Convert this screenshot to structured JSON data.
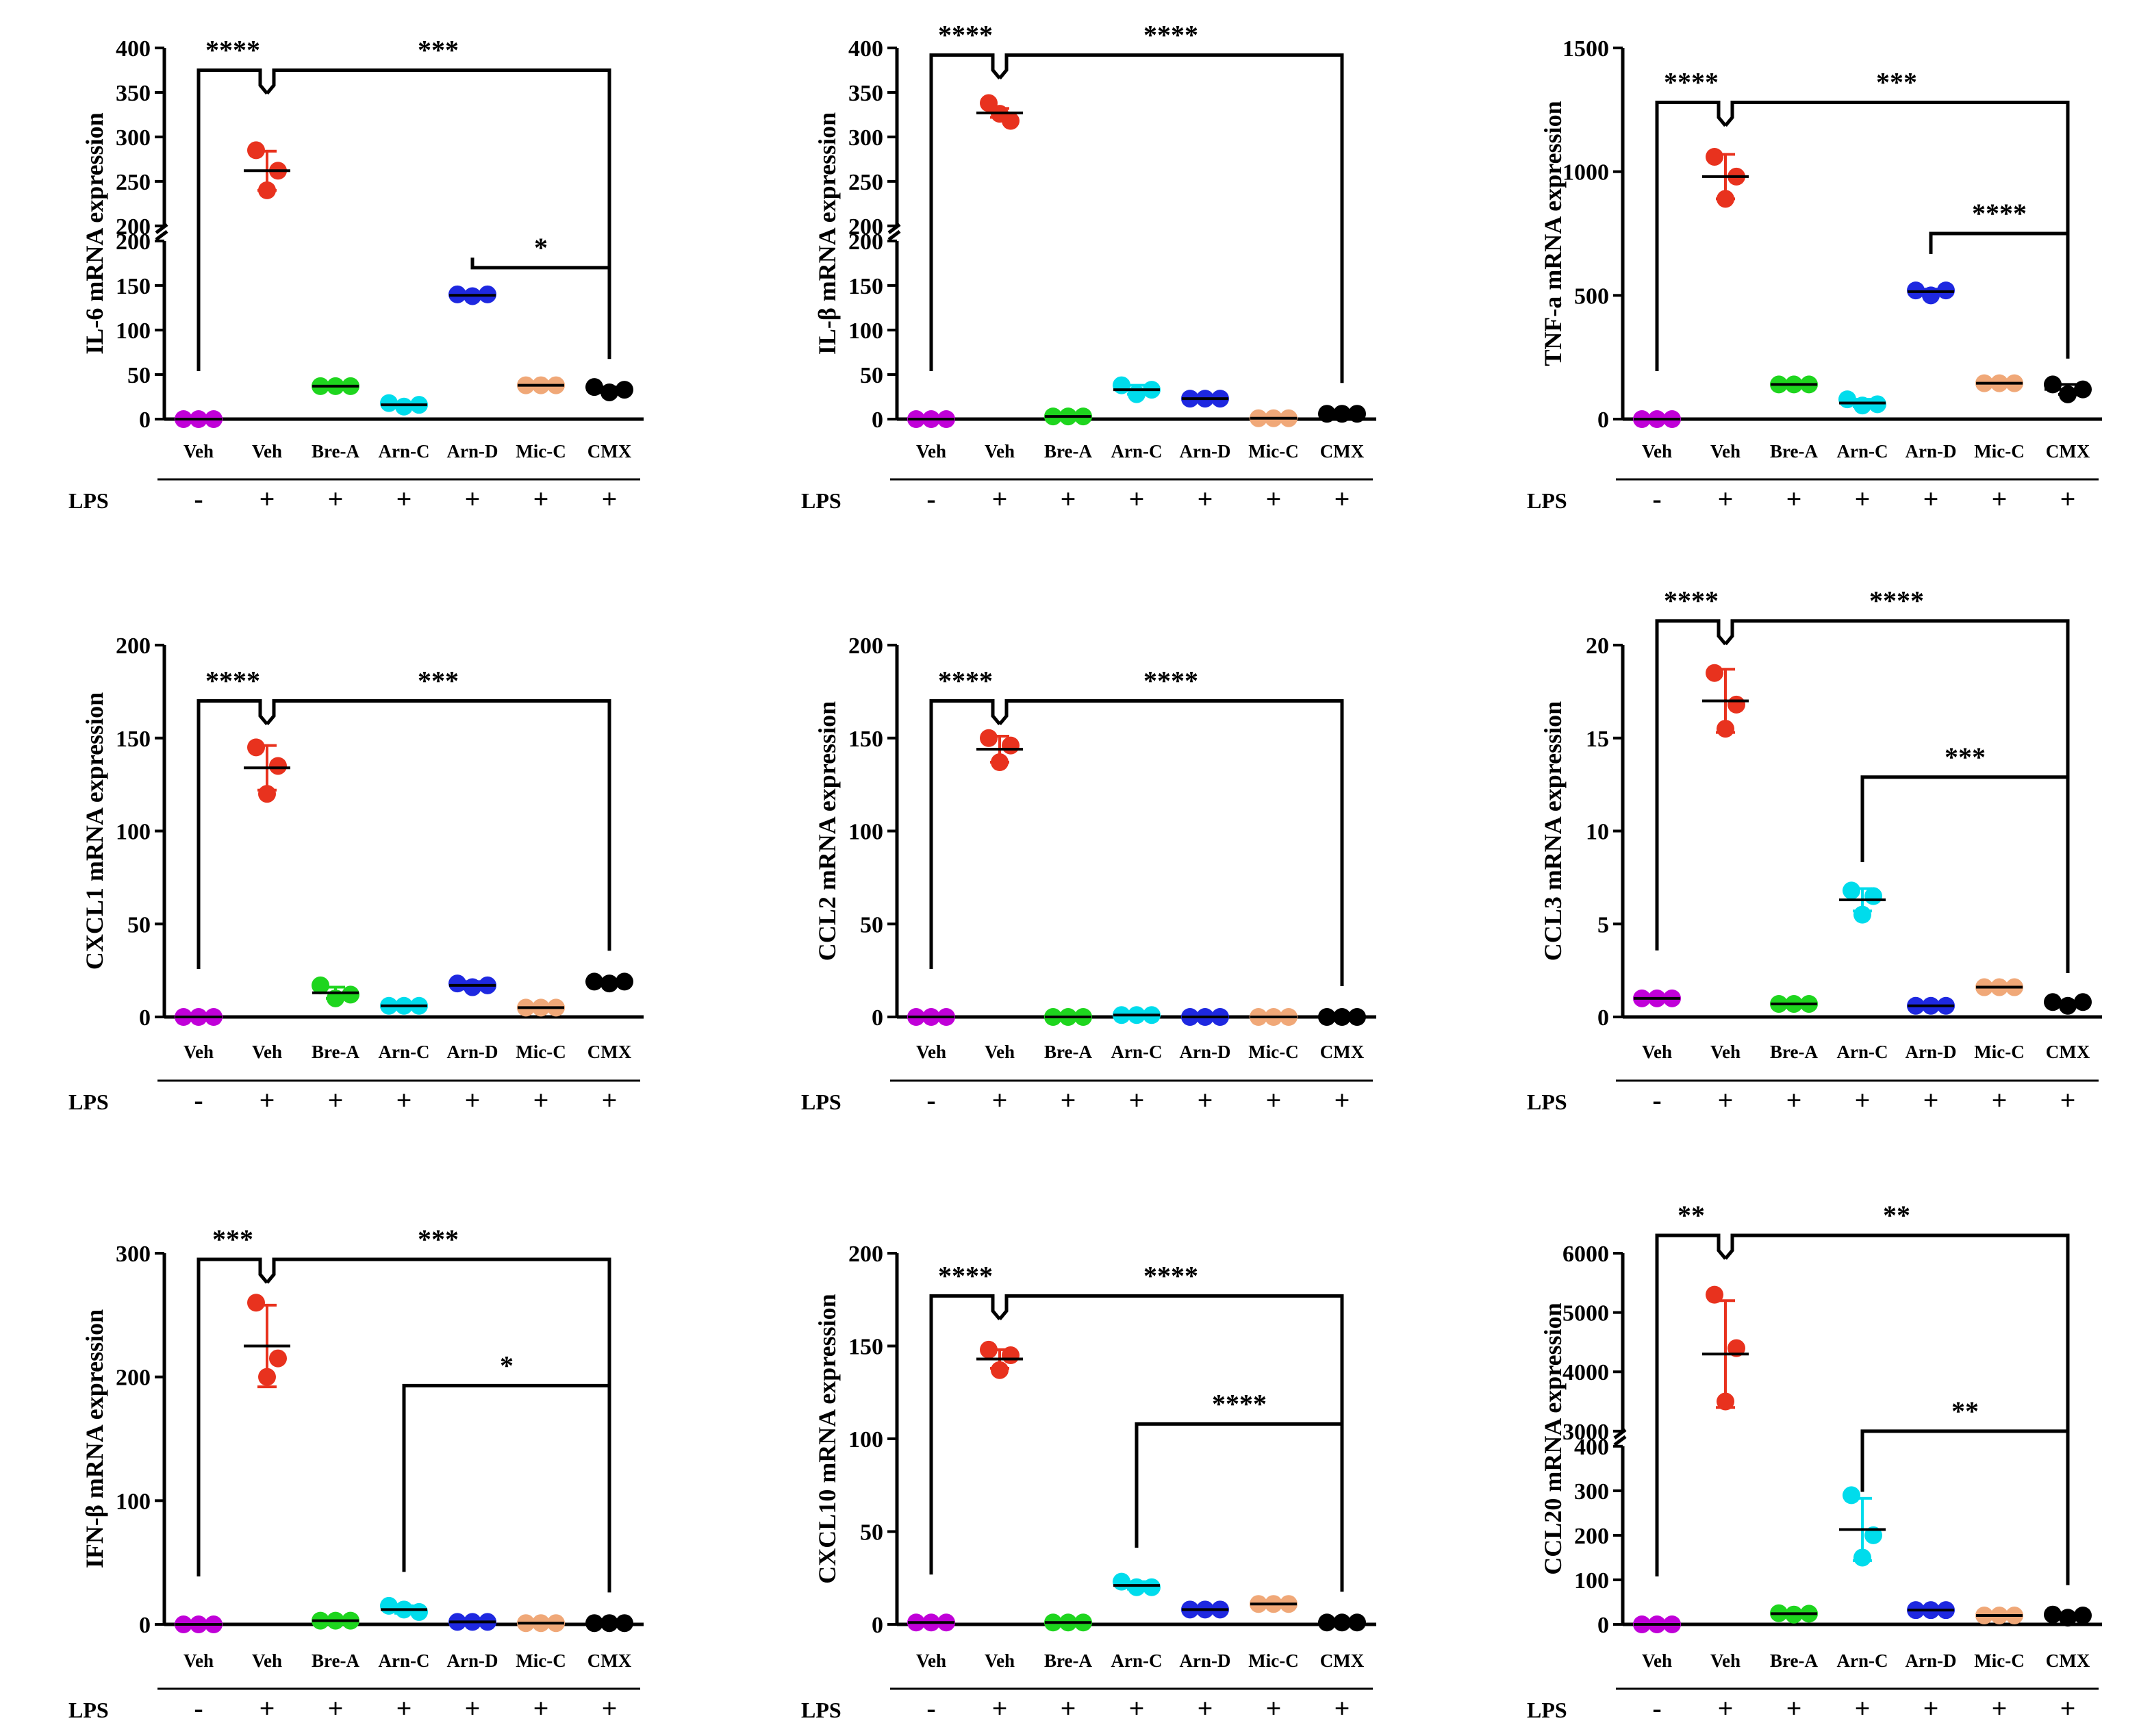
{
  "chart_data": [
    {
      "type": "scatter",
      "ylabel": "IL-6 mRNA expression",
      "categories": [
        "Veh",
        "Veh",
        "Bre-A",
        "Arn-C",
        "Arn-D",
        "Mic-C",
        "CMX"
      ],
      "treatment_label": "LPS",
      "treatment": [
        "-",
        "+",
        "+",
        "+",
        "+",
        "+",
        "+"
      ],
      "y_axis": {
        "type": "broken",
        "lower": [
          0,
          200
        ],
        "upper": [
          200,
          400
        ],
        "lower_ticks": [
          0,
          50,
          100,
          150,
          200
        ],
        "upper_ticks": [
          200,
          250,
          300,
          350,
          400
        ]
      },
      "points": [
        [
          0,
          0,
          0
        ],
        [
          285,
          262,
          240
        ],
        [
          37,
          37,
          37
        ],
        [
          18,
          14,
          16
        ],
        [
          140,
          138,
          140
        ],
        [
          38,
          38,
          38
        ],
        [
          36,
          30,
          33
        ]
      ],
      "means": [
        0,
        262,
        37,
        16,
        139,
        38,
        33
      ],
      "sds": [
        0,
        22,
        2,
        3,
        2,
        2,
        3
      ],
      "comparisons": [
        {
          "type": "tree",
          "label": "****",
          "from": 0,
          "to": 1,
          "level": 375
        },
        {
          "type": "tree",
          "label": "***",
          "from": 1,
          "to": 6,
          "level": 375
        },
        {
          "type": "bracket",
          "label": "*",
          "from": 4,
          "to": 6,
          "level": 170
        }
      ]
    },
    {
      "type": "scatter",
      "ylabel": "IL-β mRNA expression",
      "categories": [
        "Veh",
        "Veh",
        "Bre-A",
        "Arn-C",
        "Arn-D",
        "Mic-C",
        "CMX"
      ],
      "treatment_label": "LPS",
      "treatment": [
        "-",
        "+",
        "+",
        "+",
        "+",
        "+",
        "+"
      ],
      "y_axis": {
        "type": "broken",
        "lower": [
          0,
          200
        ],
        "upper": [
          200,
          400
        ],
        "lower_ticks": [
          0,
          50,
          100,
          150,
          200
        ],
        "upper_ticks": [
          200,
          250,
          300,
          350,
          400
        ]
      },
      "points": [
        [
          0,
          0,
          0
        ],
        [
          338,
          318,
          326
        ],
        [
          3,
          3,
          3
        ],
        [
          38,
          28,
          33
        ],
        [
          23,
          23,
          23
        ],
        [
          1,
          1,
          1
        ],
        [
          6,
          6,
          6
        ]
      ],
      "means": [
        0,
        327,
        3,
        33,
        23,
        1,
        6
      ],
      "sds": [
        0,
        5,
        1,
        5,
        1,
        1,
        1
      ],
      "comparisons": [
        {
          "type": "tree",
          "label": "****",
          "from": 0,
          "to": 1,
          "level": 392
        },
        {
          "type": "tree",
          "label": "****",
          "from": 1,
          "to": 6,
          "level": 392
        }
      ]
    },
    {
      "type": "scatter",
      "ylabel": "TNF-a mRNA expression",
      "categories": [
        "Veh",
        "Veh",
        "Bre-A",
        "Arn-C",
        "Arn-D",
        "Mic-C",
        "CMX"
      ],
      "treatment_label": "LPS",
      "treatment": [
        "-",
        "+",
        "+",
        "+",
        "+",
        "+",
        "+"
      ],
      "y_axis": {
        "type": "linear",
        "range": [
          0,
          1500
        ],
        "ticks": [
          0,
          500,
          1000,
          1500
        ]
      },
      "points": [
        [
          0,
          0,
          0
        ],
        [
          1060,
          980,
          890
        ],
        [
          140,
          140,
          140
        ],
        [
          80,
          55,
          60
        ],
        [
          520,
          500,
          520
        ],
        [
          145,
          145,
          145
        ],
        [
          140,
          100,
          120
        ]
      ],
      "means": [
        0,
        980,
        140,
        65,
        515,
        145,
        120
      ],
      "sds": [
        0,
        90,
        5,
        15,
        10,
        10,
        20
      ],
      "comparisons": [
        {
          "type": "tree",
          "label": "****",
          "from": 0,
          "to": 1,
          "level": 1280
        },
        {
          "type": "tree",
          "label": "***",
          "from": 1,
          "to": 6,
          "level": 1280
        },
        {
          "type": "bracket",
          "label": "****",
          "from": 4,
          "to": 6,
          "level": 750
        }
      ]
    },
    {
      "type": "scatter",
      "ylabel": "CXCL1 mRNA expression",
      "categories": [
        "Veh",
        "Veh",
        "Bre-A",
        "Arn-C",
        "Arn-D",
        "Mic-C",
        "CMX"
      ],
      "treatment_label": "LPS",
      "treatment": [
        "-",
        "+",
        "+",
        "+",
        "+",
        "+",
        "+"
      ],
      "y_axis": {
        "type": "linear",
        "range": [
          0,
          200
        ],
        "ticks": [
          0,
          50,
          100,
          150,
          200
        ]
      },
      "points": [
        [
          0,
          0,
          0
        ],
        [
          145,
          135,
          120
        ],
        [
          17,
          10,
          12
        ],
        [
          6,
          6,
          6
        ],
        [
          18,
          16,
          17
        ],
        [
          5,
          5,
          5
        ],
        [
          19,
          18,
          19
        ]
      ],
      "means": [
        0,
        134,
        13,
        6,
        17,
        5,
        19
      ],
      "sds": [
        0,
        12,
        3,
        1,
        2,
        1,
        1
      ],
      "comparisons": [
        {
          "type": "tree",
          "label": "****",
          "from": 0,
          "to": 1,
          "level": 170
        },
        {
          "type": "tree",
          "label": "***",
          "from": 1,
          "to": 6,
          "level": 170
        }
      ]
    },
    {
      "type": "scatter",
      "ylabel": "CCL2 mRNA expression",
      "categories": [
        "Veh",
        "Veh",
        "Bre-A",
        "Arn-C",
        "Arn-D",
        "Mic-C",
        "CMX"
      ],
      "treatment_label": "LPS",
      "treatment": [
        "-",
        "+",
        "+",
        "+",
        "+",
        "+",
        "+"
      ],
      "y_axis": {
        "type": "linear",
        "range": [
          0,
          200
        ],
        "ticks": [
          0,
          50,
          100,
          150,
          200
        ]
      },
      "points": [
        [
          0,
          0,
          0
        ],
        [
          150,
          146,
          137
        ],
        [
          0,
          0,
          0
        ],
        [
          1,
          1,
          1
        ],
        [
          0,
          0,
          0
        ],
        [
          0,
          0,
          0
        ],
        [
          0,
          0,
          0
        ]
      ],
      "means": [
        0,
        144,
        0,
        1,
        0,
        0,
        0
      ],
      "sds": [
        0,
        7,
        0,
        0,
        0,
        0,
        0
      ],
      "comparisons": [
        {
          "type": "tree",
          "label": "****",
          "from": 0,
          "to": 1,
          "level": 170
        },
        {
          "type": "tree",
          "label": "****",
          "from": 1,
          "to": 6,
          "level": 170
        }
      ]
    },
    {
      "type": "scatter",
      "ylabel": "CCL3 mRNA expression",
      "categories": [
        "Veh",
        "Veh",
        "Bre-A",
        "Arn-C",
        "Arn-D",
        "Mic-C",
        "CMX"
      ],
      "treatment_label": "LPS",
      "treatment": [
        "-",
        "+",
        "+",
        "+",
        "+",
        "+",
        "+"
      ],
      "y_axis": {
        "type": "linear",
        "range": [
          0,
          20
        ],
        "ticks": [
          0,
          5,
          10,
          15,
          20
        ]
      },
      "points": [
        [
          1.0,
          1.0,
          1.0
        ],
        [
          18.5,
          16.8,
          15.5
        ],
        [
          0.7,
          0.7,
          0.7
        ],
        [
          6.8,
          6.5,
          5.5
        ],
        [
          0.6,
          0.6,
          0.6
        ],
        [
          1.6,
          1.6,
          1.6
        ],
        [
          0.8,
          0.6,
          0.8
        ]
      ],
      "means": [
        1.0,
        17.0,
        0.7,
        6.3,
        0.6,
        1.6,
        0.7
      ],
      "sds": [
        0.1,
        1.7,
        0.1,
        0.6,
        0.1,
        0.1,
        0.1
      ],
      "comparisons": [
        {
          "type": "tree",
          "label": "****",
          "from": 0,
          "to": 1,
          "level": 21.3
        },
        {
          "type": "tree",
          "label": "****",
          "from": 1,
          "to": 6,
          "level": 21.3
        },
        {
          "type": "bracket",
          "label": "***",
          "from": 3,
          "to": 6,
          "level": 12.9
        }
      ]
    },
    {
      "type": "scatter",
      "ylabel": "IFN-β mRNA expression",
      "categories": [
        "Veh",
        "Veh",
        "Bre-A",
        "Arn-C",
        "Arn-D",
        "Mic-C",
        "CMX"
      ],
      "treatment_label": "LPS",
      "treatment": [
        "-",
        "+",
        "+",
        "+",
        "+",
        "+",
        "+"
      ],
      "y_axis": {
        "type": "linear",
        "range": [
          0,
          300
        ],
        "ticks": [
          0,
          100,
          200,
          300
        ]
      },
      "points": [
        [
          0,
          0,
          0
        ],
        [
          260,
          215,
          200
        ],
        [
          3,
          3,
          3
        ],
        [
          15,
          12,
          10
        ],
        [
          2,
          2,
          2
        ],
        [
          1,
          1,
          1
        ],
        [
          1,
          1,
          1
        ]
      ],
      "means": [
        0,
        225,
        3,
        12,
        2,
        1,
        1
      ],
      "sds": [
        0,
        33,
        1,
        3,
        1,
        1,
        1
      ],
      "comparisons": [
        {
          "type": "tree",
          "label": "***",
          "from": 0,
          "to": 1,
          "level": 295
        },
        {
          "type": "tree",
          "label": "***",
          "from": 1,
          "to": 6,
          "level": 295
        },
        {
          "type": "bracket",
          "label": "*",
          "from": 3,
          "to": 6,
          "level": 193
        }
      ]
    },
    {
      "type": "scatter",
      "ylabel": "CXCL10 mRNA expression",
      "categories": [
        "Veh",
        "Veh",
        "Bre-A",
        "Arn-C",
        "Arn-D",
        "Mic-C",
        "CMX"
      ],
      "treatment_label": "LPS",
      "treatment": [
        "-",
        "+",
        "+",
        "+",
        "+",
        "+",
        "+"
      ],
      "y_axis": {
        "type": "linear",
        "range": [
          0,
          200
        ],
        "ticks": [
          0,
          50,
          100,
          150,
          200
        ]
      },
      "points": [
        [
          1,
          1,
          1
        ],
        [
          148,
          145,
          137
        ],
        [
          1,
          1,
          1
        ],
        [
          23,
          20,
          20
        ],
        [
          8,
          8,
          8
        ],
        [
          11,
          11,
          11
        ],
        [
          1,
          1,
          1
        ]
      ],
      "means": [
        1,
        143,
        1,
        21,
        8,
        11,
        1
      ],
      "sds": [
        0,
        5,
        0,
        2,
        1,
        1,
        0
      ],
      "comparisons": [
        {
          "type": "tree",
          "label": "****",
          "from": 0,
          "to": 1,
          "level": 177
        },
        {
          "type": "tree",
          "label": "****",
          "from": 1,
          "to": 6,
          "level": 177
        },
        {
          "type": "bracket",
          "label": "****",
          "from": 3,
          "to": 6,
          "level": 108
        }
      ]
    },
    {
      "type": "scatter",
      "ylabel": "CCL20 mRNA expression",
      "categories": [
        "Veh",
        "Veh",
        "Bre-A",
        "Arn-C",
        "Arn-D",
        "Mic-C",
        "CMX"
      ],
      "treatment_label": "LPS",
      "treatment": [
        "-",
        "+",
        "+",
        "+",
        "+",
        "+",
        "+"
      ],
      "y_axis": {
        "type": "broken",
        "lower": [
          0,
          400
        ],
        "upper": [
          3000,
          6000
        ],
        "lower_ticks": [
          0,
          100,
          200,
          300,
          400
        ],
        "upper_ticks": [
          3000,
          4000,
          5000,
          6000
        ]
      },
      "points": [
        [
          0,
          0,
          0
        ],
        [
          5300,
          4400,
          3500
        ],
        [
          25,
          22,
          24
        ],
        [
          290,
          200,
          150
        ],
        [
          32,
          32,
          32
        ],
        [
          20,
          20,
          20
        ],
        [
          22,
          15,
          20
        ]
      ],
      "means": [
        0,
        4300,
        24,
        213,
        32,
        20,
        19
      ],
      "sds": [
        0,
        900,
        2,
        70,
        3,
        3,
        4
      ],
      "comparisons": [
        {
          "type": "tree",
          "label": "**",
          "from": 0,
          "to": 1,
          "level": 6300
        },
        {
          "type": "tree",
          "label": "**",
          "from": 1,
          "to": 6,
          "level": 6300
        },
        {
          "type": "bracket",
          "label": "**",
          "from": 3,
          "to": 6,
          "level": 420
        }
      ]
    }
  ],
  "colors": [
    "#c000d8",
    "#e8321e",
    "#1ed51e",
    "#00dcec",
    "#1e28e0",
    "#f0a878",
    "#000000"
  ]
}
